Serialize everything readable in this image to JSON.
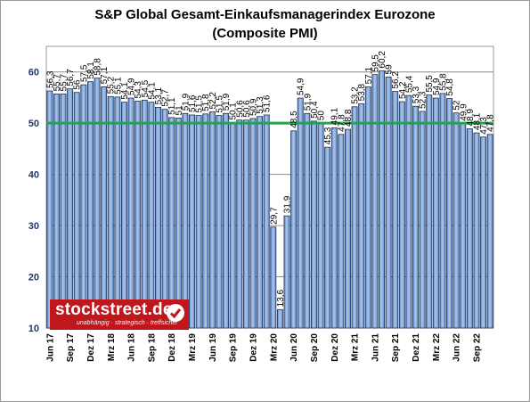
{
  "chart_data": {
    "type": "bar",
    "title": [
      "S&P Global Gesamt-Einkaufsmanagerindex Eurozone",
      "(Composite PMI)"
    ],
    "ylim": [
      10,
      65
    ],
    "yticks": [
      10,
      20,
      30,
      40,
      50,
      60
    ],
    "grid": true,
    "reference_line": {
      "value": 50,
      "color": "#1aa84a"
    },
    "bar_color": "#7ea6dc",
    "x": [
      "Jun 17",
      "Jul 17",
      "Aug 17",
      "Sep 17",
      "Okt 17",
      "Nov 17",
      "Dez 17",
      "Jan 18",
      "Feb 18",
      "Mrz 18",
      "Apr 18",
      "Mai 18",
      "Jun 18",
      "Jul 18",
      "Aug 18",
      "Sep 18",
      "Okt 18",
      "Nov 18",
      "Dez 18",
      "Jan 19",
      "Feb 19",
      "Mrz 19",
      "Apr 19",
      "Mai 19",
      "Jun 19",
      "Jul 19",
      "Aug 19",
      "Sep 19",
      "Okt 19",
      "Nov 19",
      "Dez 19",
      "Jan 20",
      "Feb 20",
      "Mrz 20",
      "Apr 20",
      "Mai 20",
      "Jun 20",
      "Jul 20",
      "Aug 20",
      "Sep 20",
      "Okt 20",
      "Nov 20",
      "Dez 20",
      "Jan 21",
      "Feb 21",
      "Mrz 21",
      "Apr 21",
      "Mai 21",
      "Jun 21",
      "Jul 21",
      "Aug 21",
      "Sep 21",
      "Okt 21",
      "Nov 21",
      "Dez 21",
      "Jan 22",
      "Feb 22",
      "Mrz 22",
      "Apr 22",
      "Mai 22",
      "Jun 22",
      "Jul 22",
      "Aug 22",
      "Sep 22",
      "Okt 22",
      "Nov 22"
    ],
    "x_tick_labels": [
      "Jun 17",
      "Sep 17",
      "Dez 17",
      "Mrz 18",
      "Jun 18",
      "Sep 18",
      "Dez 18",
      "Mrz 19",
      "Jun 19",
      "Sep 19",
      "Dez 19",
      "Mrz 20",
      "Jun 20",
      "Sep 20",
      "Dez 20",
      "Mrz 21",
      "Jun 21",
      "Sep 21",
      "Dez 21",
      "Mrz 22",
      "Jun 22",
      "Sep 22"
    ],
    "values": [
      56.3,
      55.7,
      55.7,
      56.7,
      56.0,
      57.5,
      58.1,
      58.8,
      57.1,
      55.2,
      55.1,
      54.1,
      54.9,
      54.3,
      54.5,
      54.1,
      53.1,
      52.7,
      51.1,
      51.0,
      51.9,
      51.6,
      51.5,
      51.8,
      52.2,
      51.5,
      51.9,
      50.1,
      50.6,
      50.6,
      50.9,
      51.3,
      51.6,
      29.7,
      13.6,
      31.9,
      48.5,
      54.9,
      51.9,
      50.4,
      50.0,
      45.3,
      49.1,
      47.8,
      48.8,
      53.2,
      53.8,
      57.1,
      59.5,
      60.2,
      59.0,
      56.2,
      54.2,
      55.4,
      53.3,
      52.3,
      55.5,
      54.9,
      55.8,
      54.8,
      52.0,
      49.9,
      48.9,
      48.1,
      47.3,
      47.8
    ],
    "data_labels": [
      "56,3",
      "55,7",
      "55,7",
      "56,7",
      "56",
      "57,5",
      "58,1",
      "58,8",
      "57,1",
      "55,2",
      "55,1",
      "54,1",
      "54,9",
      "54,3",
      "54,5",
      "54,1",
      "53,1",
      "52,7",
      "51,1",
      "51",
      "51,9",
      "51,6",
      "51,5",
      "51,8",
      "52,2",
      "51,5",
      "51,9",
      "50,1",
      "50,6",
      "50,6",
      "50,9",
      "51,3",
      "51,6",
      "29,7",
      "13,6",
      "31,9",
      "48,5",
      "54,9",
      "51,9",
      "50,4",
      "50",
      "45,3",
      "49,1",
      "47,8",
      "48,8",
      "53,2",
      "53,8",
      "57,1",
      "59,5",
      "60,2",
      "59",
      "56,2",
      "54,2",
      "55,4",
      "53,3",
      "52,3",
      "55,5",
      "54,9",
      "55,8",
      "54,8",
      "52",
      "49,9",
      "48,9",
      "48,1",
      "47,3",
      "47,8"
    ]
  },
  "logo": {
    "text": "stockstreet.de",
    "tagline": "unabhängig · strategisch · treffsicher",
    "icon": "checkmark-icon",
    "color": "#c0171d"
  }
}
